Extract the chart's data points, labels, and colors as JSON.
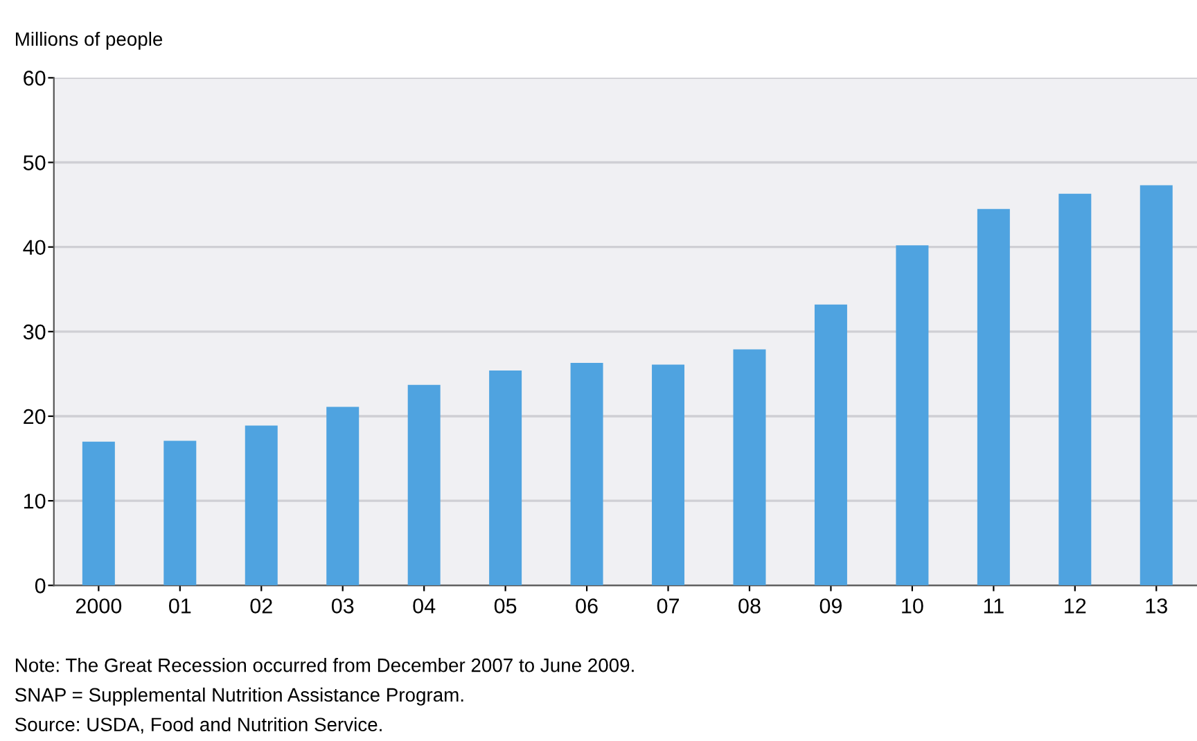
{
  "chart_data": {
    "type": "bar",
    "ylabel": "Millions of people",
    "categories": [
      "2000",
      "01",
      "02",
      "03",
      "04",
      "05",
      "06",
      "07",
      "08",
      "09",
      "10",
      "11",
      "12",
      "13"
    ],
    "values": [
      17.0,
      17.1,
      18.9,
      21.1,
      23.7,
      25.4,
      26.3,
      26.1,
      27.9,
      33.2,
      40.2,
      44.5,
      46.3,
      47.3
    ],
    "color": "#4fa3e0",
    "ylim": [
      0,
      60
    ],
    "yticks": [
      0,
      10,
      20,
      30,
      40,
      50,
      60
    ],
    "grid": "y",
    "annotations": [
      "Note: The Great Recession occurred from December 2007 to June 2009.",
      "SNAP = Supplemental Nutrition Assistance Program.",
      "Source: USDA, Food and Nutrition Service."
    ]
  }
}
